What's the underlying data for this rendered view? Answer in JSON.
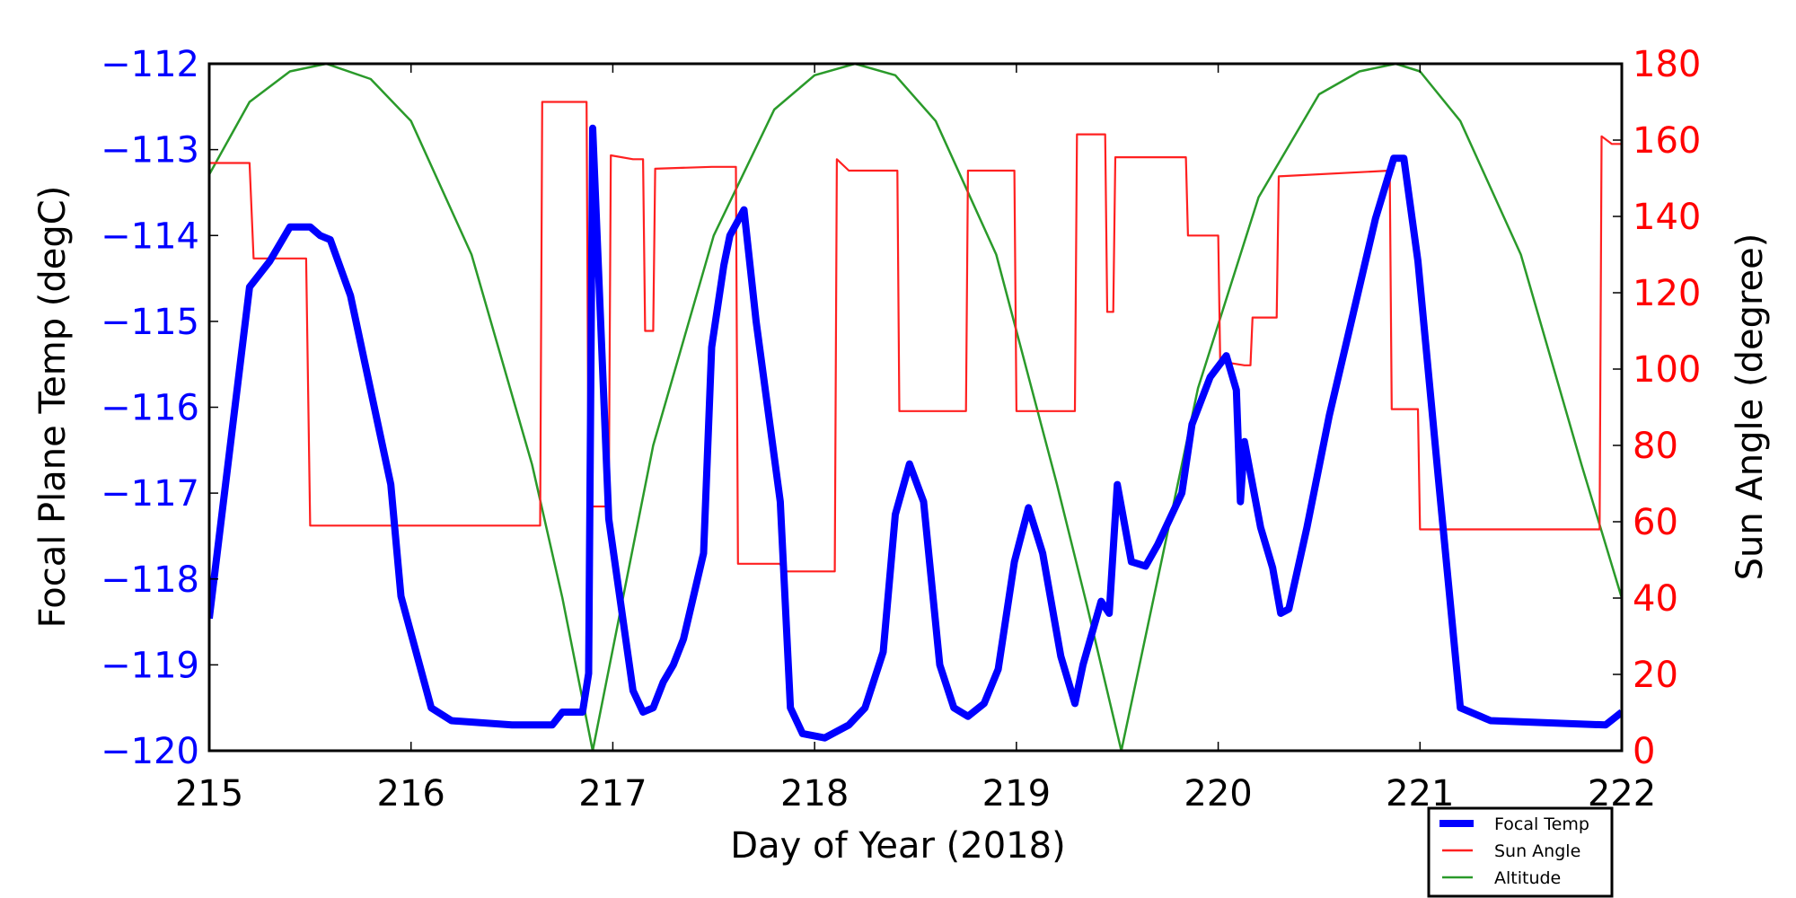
{
  "chart_data": {
    "type": "line",
    "title": "",
    "xlabel": "Day of Year (2018)",
    "ylabel_left": "Focal Plane Temp (degC)",
    "ylabel_right": "Sun Angle (degree)",
    "xlim": [
      215,
      222
    ],
    "ylim_left": [
      -120,
      -112
    ],
    "ylim_right": [
      0,
      180
    ],
    "xticks": [
      "215",
      "216",
      "217",
      "218",
      "219",
      "220",
      "221",
      "222"
    ],
    "yticks_left": [
      "−120",
      "−119",
      "−118",
      "−117",
      "−116",
      "−115",
      "−114",
      "−113",
      "−112"
    ],
    "yticks_right": [
      "0",
      "20",
      "40",
      "60",
      "80",
      "100",
      "120",
      "140",
      "160",
      "180"
    ],
    "legend": {
      "placement": "bottom-right-outside",
      "entries": [
        "Focal Temp",
        "Sun Angle",
        "Altitude"
      ]
    },
    "colors": {
      "focal_temp": "#0000ff",
      "sun_angle": "#ff2020",
      "altitude": "#2a9a2a",
      "left_axis_ticks": "#0000ff",
      "right_axis_ticks": "#ff0000"
    },
    "series": [
      {
        "name": "Focal Temp",
        "axis": "left",
        "x": [
          215.0,
          215.2,
          215.3,
          215.4,
          215.5,
          215.55,
          215.6,
          215.7,
          215.9,
          215.95,
          216.1,
          216.2,
          216.5,
          216.7,
          216.75,
          216.85,
          216.88,
          216.9,
          216.98,
          217.1,
          217.15,
          217.2,
          217.25,
          217.3,
          217.35,
          217.45,
          217.49,
          217.55,
          217.58,
          217.65,
          217.71,
          217.83,
          217.88,
          217.94,
          218.05,
          218.17,
          218.25,
          218.34,
          218.4,
          218.47,
          218.54,
          218.62,
          218.69,
          218.76,
          218.84,
          218.91,
          218.99,
          219.06,
          219.13,
          219.22,
          219.29,
          219.33,
          219.42,
          219.46,
          219.5,
          219.57,
          219.64,
          219.7,
          219.82,
          219.87,
          219.96,
          220.04,
          220.09,
          220.11,
          220.13,
          220.21,
          220.27,
          220.31,
          220.35,
          220.44,
          220.55,
          220.67,
          220.78,
          220.87,
          220.92,
          220.99,
          221.09,
          221.2,
          221.35,
          221.92,
          222.0
        ],
        "y": [
          -118.46,
          -114.6,
          -114.3,
          -113.9,
          -113.9,
          -114.0,
          -114.05,
          -114.7,
          -116.9,
          -118.2,
          -119.5,
          -119.65,
          -119.7,
          -119.7,
          -119.55,
          -119.55,
          -119.1,
          -112.75,
          -117.3,
          -119.3,
          -119.55,
          -119.5,
          -119.2,
          -119.0,
          -118.7,
          -117.7,
          -115.3,
          -114.35,
          -114.0,
          -113.7,
          -115.0,
          -117.1,
          -119.5,
          -119.8,
          -119.85,
          -119.7,
          -119.5,
          -118.85,
          -117.25,
          -116.66,
          -117.1,
          -119.0,
          -119.5,
          -119.6,
          -119.45,
          -119.05,
          -117.8,
          -117.17,
          -117.7,
          -118.9,
          -119.45,
          -119.0,
          -118.26,
          -118.4,
          -116.9,
          -117.8,
          -117.85,
          -117.6,
          -117.0,
          -116.2,
          -115.65,
          -115.4,
          -115.8,
          -117.1,
          -116.4,
          -117.4,
          -117.87,
          -118.4,
          -118.35,
          -117.4,
          -116.1,
          -114.9,
          -113.8,
          -113.1,
          -113.1,
          -114.3,
          -116.8,
          -119.5,
          -119.65,
          -119.7,
          -119.55
        ]
      },
      {
        "name": "Sun Angle",
        "axis": "right",
        "x": [
          215.0,
          215.2,
          215.22,
          215.48,
          215.5,
          216.64,
          216.65,
          216.87,
          216.88,
          216.98,
          216.99,
          217.1,
          217.15,
          217.16,
          217.2,
          217.21,
          217.49,
          217.61,
          217.62,
          217.83,
          217.84,
          218.1,
          218.11,
          218.17,
          218.41,
          218.42,
          218.75,
          218.76,
          218.99,
          219.0,
          219.29,
          219.3,
          219.44,
          219.45,
          219.48,
          219.49,
          219.84,
          219.85,
          220.0,
          220.01,
          220.13,
          220.16,
          220.17,
          220.29,
          220.3,
          220.85,
          220.86,
          220.99,
          221.0,
          221.89,
          221.9,
          221.95,
          222.0
        ],
        "y": [
          154,
          154,
          129,
          129,
          59,
          59,
          170,
          170,
          64,
          64,
          156,
          155,
          155,
          110,
          110,
          152.5,
          153,
          153,
          49,
          49,
          47,
          47,
          155,
          152,
          152,
          89,
          89,
          152,
          152,
          89,
          89,
          161.5,
          161.5,
          115,
          115,
          155.5,
          155.5,
          135,
          135,
          102,
          101,
          101,
          113.5,
          113.5,
          150.5,
          152,
          89.5,
          89.5,
          58,
          58,
          161,
          159,
          159
        ]
      },
      {
        "name": "Altitude",
        "axis": "right",
        "x": [
          215.0,
          215.2,
          215.4,
          215.58,
          215.8,
          216.0,
          216.3,
          216.6,
          216.75,
          216.9,
          217.05,
          217.2,
          217.5,
          217.8,
          218.0,
          218.2,
          218.4,
          218.6,
          218.9,
          219.2,
          219.35,
          219.52,
          219.7,
          219.9,
          220.2,
          220.5,
          220.7,
          220.88,
          221.0,
          221.2,
          221.5,
          221.8,
          222.0
        ],
        "y": [
          151,
          170,
          178,
          180,
          176,
          165,
          130,
          75,
          40,
          0,
          40,
          80,
          135,
          168,
          177,
          180,
          177,
          165,
          130,
          70,
          38,
          0,
          45,
          95,
          145,
          172,
          178,
          180,
          178,
          165,
          130,
          75,
          40
        ]
      }
    ]
  }
}
